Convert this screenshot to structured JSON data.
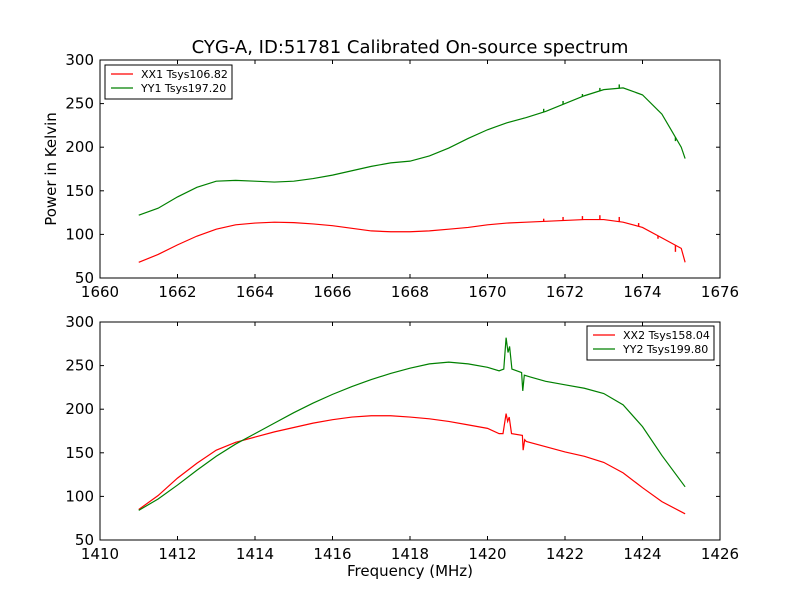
{
  "title": "CYG-A, ID:51781 Calibrated On-source spectrum",
  "chart_data": [
    {
      "type": "line",
      "ylabel": "Power in Kelvin",
      "xlabel": "",
      "xlim": [
        1660,
        1676
      ],
      "ylim": [
        50,
        300
      ],
      "xticks": [
        "1660",
        "1662",
        "1664",
        "1666",
        "1668",
        "1670",
        "1672",
        "1674",
        "1676"
      ],
      "yticks": [
        "50",
        "100",
        "150",
        "200",
        "250",
        "300"
      ],
      "legend_position": "top-left",
      "series": [
        {
          "name": "XX1 Tsys106.82",
          "color": "#ff0000",
          "points": [
            [
              1661.0,
              68
            ],
            [
              1661.5,
              77
            ],
            [
              1662.0,
              88
            ],
            [
              1662.5,
              98
            ],
            [
              1663.0,
              106
            ],
            [
              1663.5,
              111
            ],
            [
              1664.0,
              113
            ],
            [
              1664.5,
              114
            ],
            [
              1665.0,
              113.5
            ],
            [
              1665.5,
              112
            ],
            [
              1666.0,
              110
            ],
            [
              1666.5,
              107
            ],
            [
              1667.0,
              104
            ],
            [
              1667.5,
              103
            ],
            [
              1668.0,
              103
            ],
            [
              1668.5,
              104
            ],
            [
              1669.0,
              106
            ],
            [
              1669.5,
              108
            ],
            [
              1670.0,
              111
            ],
            [
              1670.5,
              113
            ],
            [
              1671.0,
              114
            ],
            [
              1671.5,
              115
            ],
            [
              1672.0,
              116
            ],
            [
              1672.5,
              117
            ],
            [
              1673.0,
              117
            ],
            [
              1673.5,
              114
            ],
            [
              1674.0,
              108
            ],
            [
              1674.5,
              96
            ],
            [
              1675.0,
              84
            ],
            [
              1675.1,
              68
            ]
          ],
          "spikes": [
            [
              1671.45,
              118
            ],
            [
              1671.95,
              120
            ],
            [
              1672.45,
              121
            ],
            [
              1672.9,
              122
            ],
            [
              1673.4,
              120
            ],
            [
              1673.9,
              113
            ],
            [
              1674.4,
              95
            ],
            [
              1674.85,
              80
            ]
          ]
        },
        {
          "name": "YY1 Tsys197.20",
          "color": "#008000",
          "points": [
            [
              1661.0,
              122
            ],
            [
              1661.5,
              130
            ],
            [
              1662.0,
              143
            ],
            [
              1662.5,
              154
            ],
            [
              1663.0,
              161
            ],
            [
              1663.5,
              162
            ],
            [
              1664.0,
              161
            ],
            [
              1664.5,
              160
            ],
            [
              1665.0,
              161
            ],
            [
              1665.5,
              164
            ],
            [
              1666.0,
              168
            ],
            [
              1666.5,
              173
            ],
            [
              1667.0,
              178
            ],
            [
              1667.5,
              182
            ],
            [
              1668.0,
              184
            ],
            [
              1668.5,
              190
            ],
            [
              1669.0,
              199
            ],
            [
              1669.5,
              210
            ],
            [
              1670.0,
              220
            ],
            [
              1670.5,
              228
            ],
            [
              1671.0,
              234
            ],
            [
              1671.5,
              241
            ],
            [
              1672.0,
              250
            ],
            [
              1672.5,
              259
            ],
            [
              1673.0,
              266
            ],
            [
              1673.5,
              268
            ],
            [
              1674.0,
              260
            ],
            [
              1674.5,
              238
            ],
            [
              1675.0,
              200
            ],
            [
              1675.1,
              187
            ]
          ],
          "spikes": [
            [
              1670.95,
              234
            ],
            [
              1671.45,
              244
            ],
            [
              1671.95,
              253
            ],
            [
              1672.45,
              261
            ],
            [
              1672.9,
              268
            ],
            [
              1673.4,
              272
            ],
            [
              1673.9,
              262
            ],
            [
              1674.4,
              242
            ],
            [
              1674.85,
              207
            ]
          ]
        }
      ]
    },
    {
      "type": "line",
      "ylabel": "",
      "xlabel": "Frequency (MHz)",
      "xlim": [
        1410,
        1426
      ],
      "ylim": [
        50,
        300
      ],
      "xticks": [
        "1410",
        "1412",
        "1414",
        "1416",
        "1418",
        "1420",
        "1422",
        "1424",
        "1426"
      ],
      "yticks": [
        "50",
        "100",
        "150",
        "200",
        "250",
        "300"
      ],
      "legend_position": "top-right",
      "series": [
        {
          "name": "XX2 Tsys158.04",
          "color": "#ff0000",
          "points": [
            [
              1411.0,
              85
            ],
            [
              1411.5,
              101
            ],
            [
              1412.0,
              121
            ],
            [
              1412.5,
              138
            ],
            [
              1413.0,
              153
            ],
            [
              1413.5,
              162
            ],
            [
              1414.0,
              168
            ],
            [
              1414.5,
              174
            ],
            [
              1415.0,
              179
            ],
            [
              1415.5,
              184
            ],
            [
              1416.0,
              188
            ],
            [
              1416.5,
              191
            ],
            [
              1417.0,
              192.5
            ],
            [
              1417.5,
              192.5
            ],
            [
              1418.0,
              191
            ],
            [
              1418.5,
              189
            ],
            [
              1419.0,
              186
            ],
            [
              1419.5,
              182
            ],
            [
              1420.0,
              178
            ],
            [
              1420.3,
              172
            ],
            [
              1420.4,
              172
            ],
            [
              1420.48,
              195
            ],
            [
              1420.52,
              186
            ],
            [
              1420.56,
              191
            ],
            [
              1420.62,
              172
            ],
            [
              1420.9,
              170
            ],
            [
              1420.92,
              153
            ],
            [
              1420.96,
              165
            ],
            [
              1421.0,
              163
            ],
            [
              1421.5,
              157
            ],
            [
              1422.0,
              151
            ],
            [
              1422.5,
              146
            ],
            [
              1423.0,
              139
            ],
            [
              1423.5,
              127
            ],
            [
              1424.0,
              110
            ],
            [
              1424.5,
              94
            ],
            [
              1425.1,
              80
            ]
          ]
        },
        {
          "name": "YY2 Tsys199.80",
          "color": "#008000",
          "points": [
            [
              1411.0,
              84
            ],
            [
              1411.5,
              97
            ],
            [
              1412.0,
              113
            ],
            [
              1412.5,
              130
            ],
            [
              1413.0,
              146
            ],
            [
              1413.5,
              160
            ],
            [
              1414.0,
              172
            ],
            [
              1414.5,
              184
            ],
            [
              1415.0,
              196
            ],
            [
              1415.5,
              207
            ],
            [
              1416.0,
              217
            ],
            [
              1416.5,
              226
            ],
            [
              1417.0,
              234
            ],
            [
              1417.5,
              241
            ],
            [
              1418.0,
              247
            ],
            [
              1418.5,
              252
            ],
            [
              1419.0,
              254
            ],
            [
              1419.5,
              252
            ],
            [
              1420.0,
              248
            ],
            [
              1420.3,
              244
            ],
            [
              1420.42,
              246
            ],
            [
              1420.48,
              282
            ],
            [
              1420.53,
              265
            ],
            [
              1420.57,
              272
            ],
            [
              1420.63,
              246
            ],
            [
              1420.88,
              242
            ],
            [
              1420.91,
              221
            ],
            [
              1420.95,
              239
            ],
            [
              1421.1,
              237
            ],
            [
              1421.5,
              232
            ],
            [
              1422.0,
              228
            ],
            [
              1422.5,
              224
            ],
            [
              1423.0,
              218
            ],
            [
              1423.5,
              205
            ],
            [
              1424.0,
              180
            ],
            [
              1424.5,
              147
            ],
            [
              1425.1,
              111
            ]
          ]
        }
      ]
    }
  ]
}
